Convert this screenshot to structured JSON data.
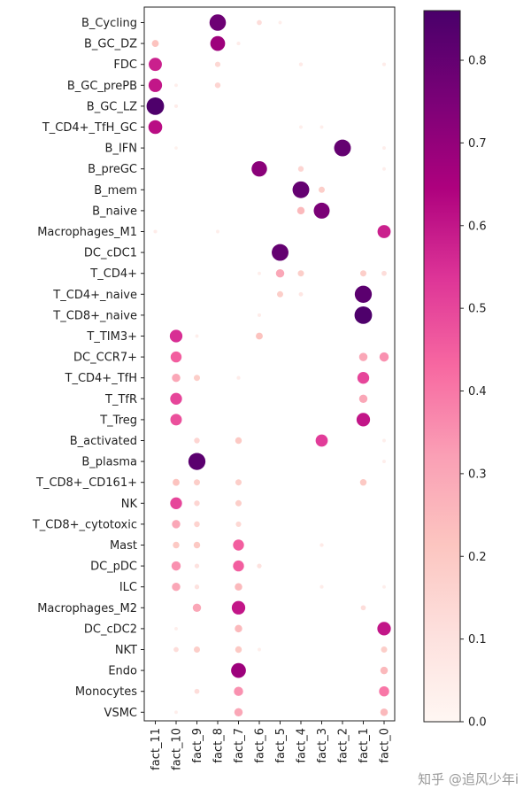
{
  "chart_data": {
    "type": "scatter",
    "subtype": "dot-plot",
    "title": "",
    "xlabel": "",
    "ylabel": "",
    "factors": [
      "fact_11",
      "fact_10",
      "fact_9",
      "fact_8",
      "fact_7",
      "fact_6",
      "fact_5",
      "fact_4",
      "fact_3",
      "fact_2",
      "fact_1",
      "fact_0"
    ],
    "cell_types": [
      "B_Cycling",
      "B_GC_DZ",
      "FDC",
      "B_GC_prePB",
      "B_GC_LZ",
      "T_CD4+_TfH_GC",
      "B_IFN",
      "B_preGC",
      "B_mem",
      "B_naive",
      "Macrophages_M1",
      "DC_cDC1",
      "T_CD4+",
      "T_CD4+_naive",
      "T_CD8+_naive",
      "T_TIM3+",
      "DC_CCR7+",
      "T_CD4+_TfH",
      "T_TfR",
      "T_Treg",
      "B_activated",
      "B_plasma",
      "T_CD8+_CD161+",
      "NK",
      "T_CD8+_cytotoxic",
      "Mast",
      "DC_pDC",
      "ILC",
      "Macrophages_M2",
      "DC_cDC2",
      "NKT",
      "Endo",
      "Monocytes",
      "VSMC"
    ],
    "points": [
      {
        "cell": "B_Cycling",
        "factor": "fact_8",
        "value": 0.78
      },
      {
        "cell": "B_Cycling",
        "factor": "fact_6",
        "value": 0.12
      },
      {
        "cell": "B_Cycling",
        "factor": "fact_5",
        "value": 0.04
      },
      {
        "cell": "B_GC_DZ",
        "factor": "fact_11",
        "value": 0.22
      },
      {
        "cell": "B_GC_DZ",
        "factor": "fact_8",
        "value": 0.68
      },
      {
        "cell": "B_GC_DZ",
        "factor": "fact_7",
        "value": 0.05
      },
      {
        "cell": "FDC",
        "factor": "fact_11",
        "value": 0.58
      },
      {
        "cell": "FDC",
        "factor": "fact_8",
        "value": 0.14
      },
      {
        "cell": "FDC",
        "factor": "fact_4",
        "value": 0.06
      },
      {
        "cell": "FDC",
        "factor": "fact_0",
        "value": 0.05
      },
      {
        "cell": "B_GC_prePB",
        "factor": "fact_11",
        "value": 0.6
      },
      {
        "cell": "B_GC_prePB",
        "factor": "fact_10",
        "value": 0.04
      },
      {
        "cell": "B_GC_prePB",
        "factor": "fact_8",
        "value": 0.15
      },
      {
        "cell": "B_GC_LZ",
        "factor": "fact_11",
        "value": 0.85
      },
      {
        "cell": "B_GC_LZ",
        "factor": "fact_10",
        "value": 0.05
      },
      {
        "cell": "T_CD4+_TfH_GC",
        "factor": "fact_11",
        "value": 0.62
      },
      {
        "cell": "T_CD4+_TfH_GC",
        "factor": "fact_4",
        "value": 0.04
      },
      {
        "cell": "T_CD4+_TfH_GC",
        "factor": "fact_3",
        "value": 0.04
      },
      {
        "cell": "B_IFN",
        "factor": "fact_2",
        "value": 0.8
      },
      {
        "cell": "B_IFN",
        "factor": "fact_10",
        "value": 0.03
      },
      {
        "cell": "B_IFN",
        "factor": "fact_0",
        "value": 0.04
      },
      {
        "cell": "B_preGC",
        "factor": "fact_6",
        "value": 0.72
      },
      {
        "cell": "B_preGC",
        "factor": "fact_4",
        "value": 0.15
      },
      {
        "cell": "B_preGC",
        "factor": "fact_0",
        "value": 0.04
      },
      {
        "cell": "B_mem",
        "factor": "fact_4",
        "value": 0.8
      },
      {
        "cell": "B_mem",
        "factor": "fact_3",
        "value": 0.18
      },
      {
        "cell": "B_naive",
        "factor": "fact_4",
        "value": 0.25
      },
      {
        "cell": "B_naive",
        "factor": "fact_3",
        "value": 0.75
      },
      {
        "cell": "Macrophages_M1",
        "factor": "fact_0",
        "value": 0.58
      },
      {
        "cell": "Macrophages_M1",
        "factor": "fact_11",
        "value": 0.05
      },
      {
        "cell": "Macrophages_M1",
        "factor": "fact_8",
        "value": 0.04
      },
      {
        "cell": "DC_cDC1",
        "factor": "fact_5",
        "value": 0.8
      },
      {
        "cell": "T_CD4+",
        "factor": "fact_5",
        "value": 0.3
      },
      {
        "cell": "T_CD4+",
        "factor": "fact_4",
        "value": 0.18
      },
      {
        "cell": "T_CD4+",
        "factor": "fact_1",
        "value": 0.18
      },
      {
        "cell": "T_CD4+",
        "factor": "fact_0",
        "value": 0.12
      },
      {
        "cell": "T_CD4+",
        "factor": "fact_6",
        "value": 0.04
      },
      {
        "cell": "T_CD4+_naive",
        "factor": "fact_1",
        "value": 0.82
      },
      {
        "cell": "T_CD4+_naive",
        "factor": "fact_5",
        "value": 0.18
      },
      {
        "cell": "T_CD4+_naive",
        "factor": "fact_4",
        "value": 0.08
      },
      {
        "cell": "T_CD8+_naive",
        "factor": "fact_1",
        "value": 0.85
      },
      {
        "cell": "T_CD8+_naive",
        "factor": "fact_6",
        "value": 0.05
      },
      {
        "cell": "T_TIM3+",
        "factor": "fact_10",
        "value": 0.55
      },
      {
        "cell": "T_TIM3+",
        "factor": "fact_6",
        "value": 0.22
      },
      {
        "cell": "T_TIM3+",
        "factor": "fact_9",
        "value": 0.04
      },
      {
        "cell": "DC_CCR7+",
        "factor": "fact_10",
        "value": 0.45
      },
      {
        "cell": "DC_CCR7+",
        "factor": "fact_1",
        "value": 0.3
      },
      {
        "cell": "DC_CCR7+",
        "factor": "fact_0",
        "value": 0.35
      },
      {
        "cell": "T_CD4+_TfH",
        "factor": "fact_10",
        "value": 0.3
      },
      {
        "cell": "T_CD4+_TfH",
        "factor": "fact_9",
        "value": 0.18
      },
      {
        "cell": "T_CD4+_TfH",
        "factor": "fact_7",
        "value": 0.05
      },
      {
        "cell": "T_CD4+_TfH",
        "factor": "fact_1",
        "value": 0.5
      },
      {
        "cell": "T_TfR",
        "factor": "fact_10",
        "value": 0.5
      },
      {
        "cell": "T_TfR",
        "factor": "fact_1",
        "value": 0.3
      },
      {
        "cell": "T_Treg",
        "factor": "fact_10",
        "value": 0.48
      },
      {
        "cell": "T_Treg",
        "factor": "fact_1",
        "value": 0.6
      },
      {
        "cell": "B_activated",
        "factor": "fact_3",
        "value": 0.52
      },
      {
        "cell": "B_activated",
        "factor": "fact_7",
        "value": 0.2
      },
      {
        "cell": "B_activated",
        "factor": "fact_9",
        "value": 0.15
      },
      {
        "cell": "B_activated",
        "factor": "fact_0",
        "value": 0.04
      },
      {
        "cell": "B_plasma",
        "factor": "fact_9",
        "value": 0.82
      },
      {
        "cell": "B_plasma",
        "factor": "fact_0",
        "value": 0.04
      },
      {
        "cell": "T_CD8+_CD161+",
        "factor": "fact_10",
        "value": 0.22
      },
      {
        "cell": "T_CD8+_CD161+",
        "factor": "fact_9",
        "value": 0.18
      },
      {
        "cell": "T_CD8+_CD161+",
        "factor": "fact_7",
        "value": 0.18
      },
      {
        "cell": "T_CD8+_CD161+",
        "factor": "fact_1",
        "value": 0.2
      },
      {
        "cell": "NK",
        "factor": "fact_10",
        "value": 0.5
      },
      {
        "cell": "NK",
        "factor": "fact_9",
        "value": 0.15
      },
      {
        "cell": "NK",
        "factor": "fact_7",
        "value": 0.18
      },
      {
        "cell": "T_CD8+_cytotoxic",
        "factor": "fact_10",
        "value": 0.3
      },
      {
        "cell": "T_CD8+_cytotoxic",
        "factor": "fact_9",
        "value": 0.16
      },
      {
        "cell": "T_CD8+_cytotoxic",
        "factor": "fact_7",
        "value": 0.14
      },
      {
        "cell": "Mast",
        "factor": "fact_10",
        "value": 0.2
      },
      {
        "cell": "Mast",
        "factor": "fact_9",
        "value": 0.2
      },
      {
        "cell": "Mast",
        "factor": "fact_7",
        "value": 0.45
      },
      {
        "cell": "Mast",
        "factor": "fact_3",
        "value": 0.06
      },
      {
        "cell": "DC_pDC",
        "factor": "fact_10",
        "value": 0.35
      },
      {
        "cell": "DC_pDC",
        "factor": "fact_9",
        "value": 0.1
      },
      {
        "cell": "DC_pDC",
        "factor": "fact_7",
        "value": 0.45
      },
      {
        "cell": "DC_pDC",
        "factor": "fact_6",
        "value": 0.1
      },
      {
        "cell": "ILC",
        "factor": "fact_10",
        "value": 0.3
      },
      {
        "cell": "ILC",
        "factor": "fact_9",
        "value": 0.1
      },
      {
        "cell": "ILC",
        "factor": "fact_7",
        "value": 0.25
      },
      {
        "cell": "ILC",
        "factor": "fact_3",
        "value": 0.05
      },
      {
        "cell": "ILC",
        "factor": "fact_0",
        "value": 0.04
      },
      {
        "cell": "Macrophages_M2",
        "factor": "fact_9",
        "value": 0.3
      },
      {
        "cell": "Macrophages_M2",
        "factor": "fact_7",
        "value": 0.6
      },
      {
        "cell": "Macrophages_M2",
        "factor": "fact_1",
        "value": 0.12
      },
      {
        "cell": "DC_cDC2",
        "factor": "fact_10",
        "value": 0.04
      },
      {
        "cell": "DC_cDC2",
        "factor": "fact_7",
        "value": 0.25
      },
      {
        "cell": "DC_cDC2",
        "factor": "fact_0",
        "value": 0.6
      },
      {
        "cell": "NKT",
        "factor": "fact_10",
        "value": 0.12
      },
      {
        "cell": "NKT",
        "factor": "fact_9",
        "value": 0.18
      },
      {
        "cell": "NKT",
        "factor": "fact_7",
        "value": 0.2
      },
      {
        "cell": "NKT",
        "factor": "fact_6",
        "value": 0.04
      },
      {
        "cell": "NKT",
        "factor": "fact_0",
        "value": 0.18
      },
      {
        "cell": "Endo",
        "factor": "fact_7",
        "value": 0.68
      },
      {
        "cell": "Endo",
        "factor": "fact_0",
        "value": 0.25
      },
      {
        "cell": "Monocytes",
        "factor": "fact_9",
        "value": 0.12
      },
      {
        "cell": "Monocytes",
        "factor": "fact_7",
        "value": 0.35
      },
      {
        "cell": "Monocytes",
        "factor": "fact_0",
        "value": 0.4
      },
      {
        "cell": "VSMC",
        "factor": "fact_10",
        "value": 0.04
      },
      {
        "cell": "VSMC",
        "factor": "fact_7",
        "value": 0.3
      },
      {
        "cell": "VSMC",
        "factor": "fact_0",
        "value": 0.25
      }
    ],
    "colorbar": {
      "range": [
        0.0,
        0.86
      ],
      "ticks": [
        "0.0",
        "0.1",
        "0.2",
        "0.3",
        "0.4",
        "0.5",
        "0.6",
        "0.7",
        "0.8"
      ],
      "colormap": "RdPu",
      "stops": [
        "#fff7f3",
        "#fde0dd",
        "#fcc5c0",
        "#fa9fb5",
        "#f768a1",
        "#dd3497",
        "#ae017e",
        "#7a0177",
        "#49006a"
      ]
    },
    "grid": false,
    "legend": "colorbar-right"
  },
  "watermark": {
    "text": "知乎 @追风少年i"
  }
}
